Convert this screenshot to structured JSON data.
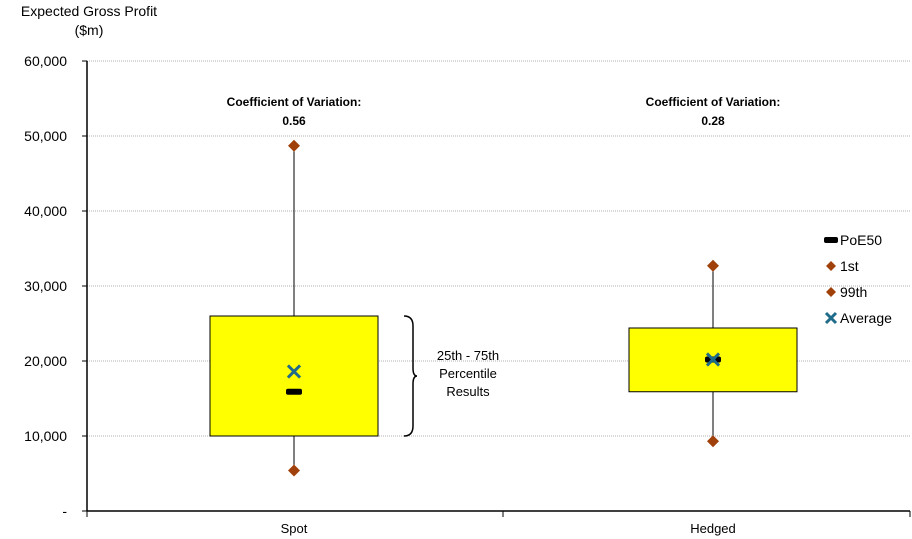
{
  "chart_data": {
    "type": "box",
    "ylabel_line1": "Expected Gross Profit",
    "ylabel_line2": "($m)",
    "ylim": [
      0,
      60000
    ],
    "y_ticks": [
      "-",
      "10,000",
      "20,000",
      "30,000",
      "40,000",
      "50,000",
      "60,000"
    ],
    "y_tick_values": [
      0,
      10000,
      20000,
      30000,
      40000,
      50000,
      60000
    ],
    "grid": true,
    "categories": [
      "Spot",
      "Hedged"
    ],
    "boxes": [
      {
        "category": "Spot",
        "q25": 10000,
        "q75": 26000,
        "poe50": 15900,
        "p1": 5400,
        "p99": 48700,
        "average": 18600,
        "cv_label": "Coefficient of Variation:",
        "cv_value": "0.56"
      },
      {
        "category": "Hedged",
        "q25": 15900,
        "q75": 24400,
        "poe50": 20200,
        "p1": 9300,
        "p99": 32700,
        "average": 20200,
        "cv_label": "Coefficient of Variation:",
        "cv_value": "0.28"
      }
    ],
    "annotation": [
      "25th - 75th",
      "Percentile",
      "Results"
    ],
    "legend": [
      "PoE50",
      "1st",
      "99th",
      "Average"
    ],
    "legend_position": "right",
    "colors": {
      "box_fill": "#ffff00",
      "diamond": "#a0400a",
      "poe50": "#000000",
      "average": "#1f6b8a",
      "grid": "#b0b0b0"
    }
  }
}
